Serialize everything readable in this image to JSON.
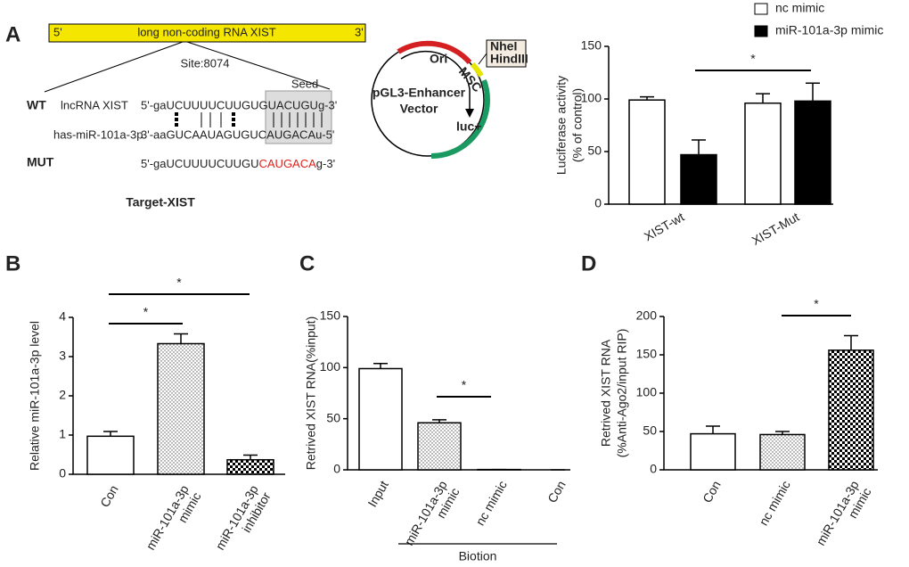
{
  "panel_labels": [
    "A",
    "B",
    "C",
    "D"
  ],
  "diagram": {
    "gene_bar": {
      "five": "5'",
      "label": "long non-coding RNA XIST",
      "three": "3'"
    },
    "site": "Site:8074",
    "seed": "Seed",
    "wt_label": "WT",
    "wt_name": "lncRNA XIST",
    "wt_seq": "5'-gaUCUUUUCUUGUGUACUGUg-3'",
    "mir_name": "has-miR-101a-3p",
    "mir_seq": "3'-aaGUCAAUAGUGUCAUGACAu-5'",
    "mut_label": "MUT",
    "mut_seq": [
      "5'-gaUCUUUUCUUGU",
      "CAUGACA",
      "g-3'"
    ],
    "target": "Target-XIST",
    "plasmid": {
      "name": [
        "pGL3-Enhancer",
        "Vector"
      ],
      "ori": "Ori",
      "msc": "MSC",
      "luc": "luc+",
      "sites": [
        "NheI",
        "HindIII"
      ]
    }
  },
  "chart_data": [
    {
      "type": "bar",
      "y_label": [
        "Luciferase activity",
        "(% of control)"
      ],
      "categories": [
        "XIST-wt",
        "XIST-Mut"
      ],
      "series": [
        {
          "name": "nc mimic",
          "color": "#ffffff",
          "values": [
            99,
            96
          ],
          "errors": [
            3,
            9
          ]
        },
        {
          "name": "miR-101a-3p mimic",
          "color": "#000000",
          "values": [
            47,
            98
          ],
          "errors": [
            14,
            17
          ]
        }
      ],
      "ylim": [
        0,
        150
      ],
      "yticks": [
        0,
        50,
        100,
        150
      ],
      "annotations": [
        "*"
      ],
      "legend": "top"
    },
    {
      "type": "bar",
      "y_label": [
        "Relative miR-101a-3p level"
      ],
      "categories": [
        [
          "Con"
        ],
        [
          "miR-101a-3p",
          "mimic"
        ],
        [
          "miR-101a-3p",
          "inhibitor"
        ]
      ],
      "values": [
        0.97,
        3.33,
        0.37
      ],
      "errors": [
        0.12,
        0.25,
        0.12
      ],
      "bar_patterns": [
        "none",
        "dots",
        "checker"
      ],
      "ylim": [
        0,
        4
      ],
      "yticks": [
        0,
        1,
        2,
        3,
        4
      ],
      "annotations": [
        "*",
        "*"
      ]
    },
    {
      "type": "bar",
      "y_label": [
        "Retrived XIST RNA(%input)"
      ],
      "categories": [
        [
          "Input"
        ],
        [
          "miR-101a-3p",
          "mimic"
        ],
        [
          "nc mimic"
        ],
        [
          "Con"
        ]
      ],
      "values": [
        99,
        46,
        0.3,
        0
      ],
      "errors": [
        5,
        3,
        0,
        0
      ],
      "bar_patterns": [
        "none",
        "dots",
        "none",
        "none"
      ],
      "ylim": [
        0,
        150
      ],
      "yticks": [
        0,
        50,
        100,
        150
      ],
      "annotations": [
        "*"
      ],
      "group_label": "Biotion"
    },
    {
      "type": "bar",
      "y_label": [
        "Retrived XIST RNA",
        "(%Anti-Ago2/input RIP)"
      ],
      "categories": [
        [
          "Con"
        ],
        [
          "nc mimic"
        ],
        [
          "miR-101a-3p",
          "mimic"
        ]
      ],
      "values": [
        47,
        46,
        156
      ],
      "errors": [
        10,
        4,
        19
      ],
      "bar_patterns": [
        "none",
        "dots",
        "checker"
      ],
      "ylim": [
        0,
        200
      ],
      "yticks": [
        0,
        50,
        100,
        150,
        200
      ],
      "annotations": [
        "*"
      ]
    }
  ]
}
